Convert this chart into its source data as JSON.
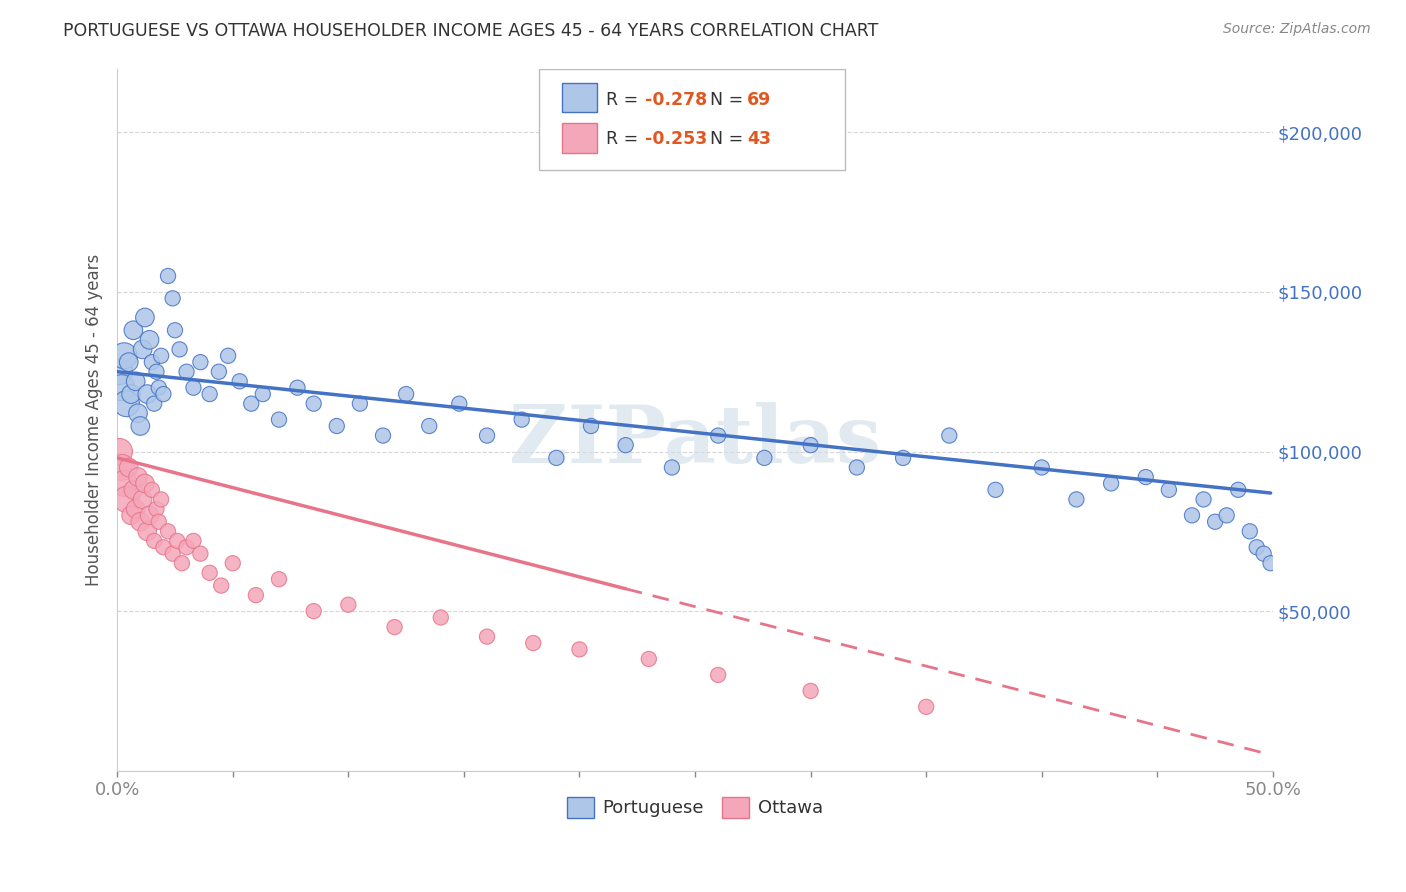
{
  "title": "PORTUGUESE VS OTTAWA HOUSEHOLDER INCOME AGES 45 - 64 YEARS CORRELATION CHART",
  "source": "Source: ZipAtlas.com",
  "ylabel": "Householder Income Ages 45 - 64 years",
  "watermark": "ZIPatlas",
  "xlim": [
    0.0,
    0.5
  ],
  "ylim": [
    0,
    220000
  ],
  "xticks": [
    0.0,
    0.05,
    0.1,
    0.15,
    0.2,
    0.25,
    0.3,
    0.35,
    0.4,
    0.45,
    0.5
  ],
  "ytick_values": [
    0,
    50000,
    100000,
    150000,
    200000
  ],
  "legend_portuguese": "Portuguese",
  "legend_ottawa": "Ottawa",
  "r_portuguese": -0.278,
  "n_portuguese": 69,
  "r_ottawa": -0.253,
  "n_ottawa": 43,
  "color_portuguese": "#aec6e8",
  "color_ottawa": "#f4a7b9",
  "color_line_portuguese": "#4472c4",
  "color_line_ottawa": "#e8748a",
  "color_axis_text": "#4472c4",
  "color_r_value": "#e05820",
  "portuguese_x": [
    0.001,
    0.002,
    0.003,
    0.004,
    0.005,
    0.006,
    0.007,
    0.008,
    0.009,
    0.01,
    0.011,
    0.012,
    0.013,
    0.014,
    0.015,
    0.016,
    0.017,
    0.018,
    0.019,
    0.02,
    0.022,
    0.024,
    0.025,
    0.027,
    0.03,
    0.033,
    0.036,
    0.04,
    0.044,
    0.048,
    0.053,
    0.058,
    0.063,
    0.07,
    0.078,
    0.085,
    0.095,
    0.105,
    0.115,
    0.125,
    0.135,
    0.148,
    0.16,
    0.175,
    0.19,
    0.205,
    0.22,
    0.24,
    0.26,
    0.28,
    0.3,
    0.32,
    0.34,
    0.36,
    0.38,
    0.4,
    0.415,
    0.43,
    0.445,
    0.455,
    0.465,
    0.47,
    0.475,
    0.48,
    0.485,
    0.49,
    0.493,
    0.496,
    0.499
  ],
  "portuguese_y": [
    125000,
    120000,
    130000,
    115000,
    128000,
    118000,
    138000,
    122000,
    112000,
    108000,
    132000,
    142000,
    118000,
    135000,
    128000,
    115000,
    125000,
    120000,
    130000,
    118000,
    155000,
    148000,
    138000,
    132000,
    125000,
    120000,
    128000,
    118000,
    125000,
    130000,
    122000,
    115000,
    118000,
    110000,
    120000,
    115000,
    108000,
    115000,
    105000,
    118000,
    108000,
    115000,
    105000,
    110000,
    98000,
    108000,
    102000,
    95000,
    105000,
    98000,
    102000,
    95000,
    98000,
    105000,
    88000,
    95000,
    85000,
    90000,
    92000,
    88000,
    80000,
    85000,
    78000,
    80000,
    88000,
    75000,
    70000,
    68000,
    65000
  ],
  "ottawa_x": [
    0.001,
    0.002,
    0.003,
    0.004,
    0.005,
    0.006,
    0.007,
    0.008,
    0.009,
    0.01,
    0.011,
    0.012,
    0.013,
    0.014,
    0.015,
    0.016,
    0.017,
    0.018,
    0.019,
    0.02,
    0.022,
    0.024,
    0.026,
    0.028,
    0.03,
    0.033,
    0.036,
    0.04,
    0.045,
    0.05,
    0.06,
    0.07,
    0.085,
    0.1,
    0.12,
    0.14,
    0.16,
    0.18,
    0.2,
    0.23,
    0.26,
    0.3,
    0.35
  ],
  "ottawa_y": [
    100000,
    95000,
    90000,
    85000,
    95000,
    80000,
    88000,
    82000,
    92000,
    78000,
    85000,
    90000,
    75000,
    80000,
    88000,
    72000,
    82000,
    78000,
    85000,
    70000,
    75000,
    68000,
    72000,
    65000,
    70000,
    72000,
    68000,
    62000,
    58000,
    65000,
    55000,
    60000,
    50000,
    52000,
    45000,
    48000,
    42000,
    40000,
    38000,
    35000,
    30000,
    25000,
    20000
  ],
  "trend_port_x0": 0.0,
  "trend_port_x1": 0.499,
  "trend_port_y0": 125000,
  "trend_port_y1": 87000,
  "trend_ott_x0": 0.0,
  "trend_ott_x1": 0.499,
  "trend_ott_y0": 98000,
  "trend_ott_y1": 5000,
  "trend_ott_solid_end": 0.22
}
